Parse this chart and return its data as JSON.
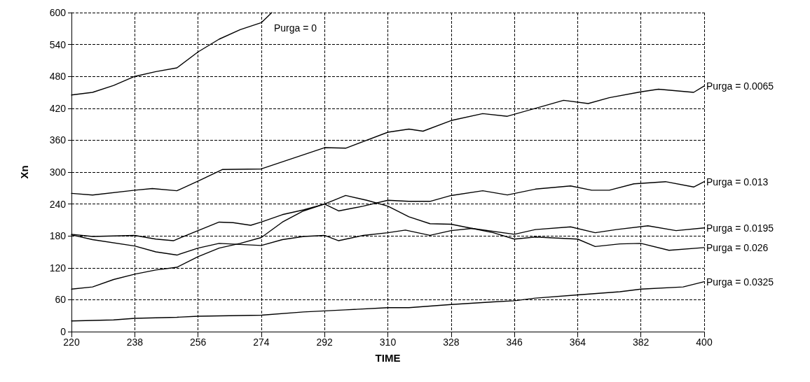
{
  "chart_data": {
    "type": "line",
    "xlabel": "TIME",
    "ylabel": "Xn",
    "xlim": [
      220,
      400
    ],
    "xticks": [
      220,
      238,
      256,
      274,
      292,
      310,
      328,
      346,
      364,
      382,
      400
    ],
    "ylim": [
      0,
      600
    ],
    "yticks": [
      0,
      60,
      120,
      180,
      240,
      300,
      360,
      420,
      480,
      540,
      600
    ],
    "grid": true,
    "marker": "none",
    "line_style": "solid",
    "legend": false,
    "series": [
      {
        "name": "Purga = 0",
        "color": "#000000",
        "x": [
          220,
          226,
          232,
          238,
          244,
          250,
          256,
          262,
          268,
          274,
          277
        ],
        "values": [
          445,
          450,
          463,
          480,
          489,
          496,
          526,
          550,
          568,
          581,
          600
        ]
      },
      {
        "name": "Purga = 0.0065",
        "color": "#000000",
        "x": [
          220,
          226,
          238,
          243,
          250,
          256,
          263,
          274,
          292,
          298,
          310,
          316,
          320,
          328,
          337,
          344,
          352,
          360,
          367,
          373,
          382,
          387,
          397,
          400
        ],
        "values": [
          260,
          257,
          266,
          269,
          265,
          283,
          305,
          306,
          346,
          345,
          375,
          381,
          377,
          397,
          410,
          405,
          420,
          435,
          429,
          440,
          451,
          456,
          450,
          462
        ]
      },
      {
        "name": "Purga = 0.013",
        "color": "#000000",
        "x": [
          220,
          226,
          238,
          244,
          249,
          256,
          262,
          266,
          271,
          274,
          280,
          286,
          292,
          296,
          303,
          310,
          316,
          322,
          328,
          337,
          344,
          352,
          362,
          368,
          373,
          380,
          389,
          397,
          400
        ],
        "values": [
          183,
          179,
          181,
          174,
          171,
          190,
          206,
          205,
          200,
          206,
          220,
          229,
          240,
          227,
          236,
          247,
          245,
          245,
          256,
          265,
          257,
          268,
          274,
          266,
          266,
          278,
          282,
          272,
          282
        ]
      },
      {
        "name": "Purga = 0.0195",
        "color": "#000000",
        "x": [
          220,
          226,
          238,
          244,
          250,
          256,
          262,
          268,
          274,
          280,
          286,
          292,
          296,
          303,
          310,
          315,
          322,
          328,
          334,
          346,
          352,
          362,
          369,
          375,
          384,
          392,
          400
        ],
        "values": [
          182,
          173,
          161,
          150,
          144,
          157,
          166,
          164,
          162,
          173,
          179,
          181,
          171,
          181,
          186,
          191,
          181,
          190,
          194,
          183,
          192,
          197,
          186,
          192,
          199,
          190,
          195
        ]
      },
      {
        "name": "Purga = 0.026",
        "color": "#000000",
        "x": [
          220,
          226,
          232,
          238,
          244,
          250,
          256,
          262,
          268,
          274,
          280,
          286,
          292,
          298,
          304,
          310,
          316,
          322,
          328,
          334,
          340,
          346,
          352,
          364,
          369,
          376,
          382,
          390,
          400
        ],
        "values": [
          80,
          84,
          98,
          108,
          116,
          121,
          141,
          157,
          166,
          177,
          206,
          227,
          240,
          256,
          247,
          236,
          216,
          203,
          202,
          194,
          186,
          174,
          178,
          174,
          160,
          165,
          166,
          153,
          158
        ]
      },
      {
        "name": "Purga = 0.0325",
        "color": "#000000",
        "x": [
          220,
          232,
          238,
          250,
          256,
          274,
          286,
          298,
          310,
          316,
          328,
          340,
          346,
          352,
          364,
          376,
          382,
          394,
          400
        ],
        "values": [
          20,
          22,
          25,
          27,
          29,
          31,
          37,
          41,
          45,
          45,
          51,
          56,
          58,
          63,
          69,
          75,
          80,
          84,
          94
        ]
      }
    ]
  }
}
